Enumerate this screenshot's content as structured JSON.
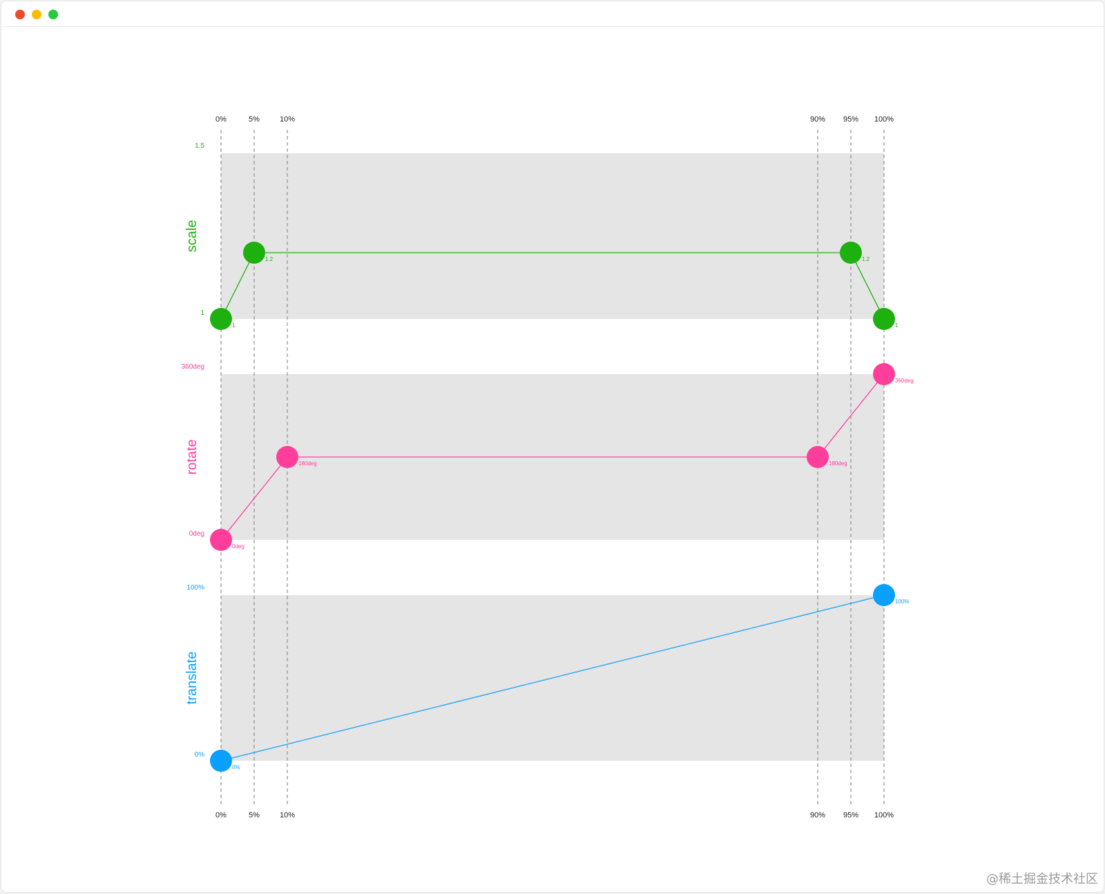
{
  "window": {
    "traffic_lights": {
      "close": "#ee4b2b",
      "minimize": "#fbbc05",
      "maximize": "#28c840"
    }
  },
  "watermark": "@稀土掘金技术社区",
  "chart_data": {
    "type": "line",
    "keyframes": [
      0,
      5,
      10,
      90,
      95,
      100
    ],
    "keyframe_labels": [
      "0%",
      "5%",
      "10%",
      "90%",
      "95%",
      "100%"
    ],
    "series": [
      {
        "name": "scale",
        "color": "#1db00f",
        "range": [
          1,
          1.5
        ],
        "range_labels": [
          "1",
          "1.5"
        ],
        "points": [
          {
            "x": 0,
            "y": 1,
            "label": "1"
          },
          {
            "x": 5,
            "y": 1.2,
            "label": "1.2"
          },
          {
            "x": 95,
            "y": 1.2,
            "label": "1.2"
          },
          {
            "x": 100,
            "y": 1,
            "label": "1"
          }
        ]
      },
      {
        "name": "rotate",
        "color": "#ff3e9b",
        "range": [
          0,
          360
        ],
        "range_labels": [
          "0deg",
          "360deg"
        ],
        "points": [
          {
            "x": 0,
            "y": 0,
            "label": "0deg"
          },
          {
            "x": 10,
            "y": 180,
            "label": "180deg"
          },
          {
            "x": 90,
            "y": 180,
            "label": "180deg"
          },
          {
            "x": 100,
            "y": 360,
            "label": "360deg"
          }
        ]
      },
      {
        "name": "translate",
        "color": "#09a0ff",
        "range": [
          0,
          100
        ],
        "range_labels": [
          "0%",
          "100%"
        ],
        "points": [
          {
            "x": 0,
            "y": 0,
            "label": "0%"
          },
          {
            "x": 100,
            "y": 100,
            "label": "100%"
          }
        ]
      }
    ]
  }
}
